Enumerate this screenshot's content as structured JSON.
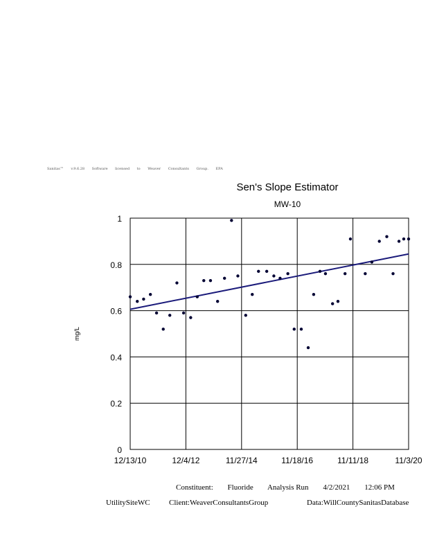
{
  "license_text": "Sanitas™ v.9.6.28 Software licensed to Weaver Consultants Group. EPA",
  "chart_data": {
    "type": "scatter",
    "title": "Sen's Slope Estimator",
    "subtitle": "MW-10",
    "ylabel": "mg/L",
    "xlabel": "",
    "ylim": [
      0,
      1
    ],
    "yticks": [
      "0",
      "0.2",
      "0.4",
      "0.6",
      "0.8",
      "1"
    ],
    "xlim": [
      "2010-12-13",
      "2020-11-03"
    ],
    "xticks": [
      "12/13/10",
      "12/4/12",
      "11/27/14",
      "11/18/16",
      "11/11/18",
      "11/3/20"
    ],
    "grid": true,
    "point_color": "#000033",
    "trend_color": "#1a1a7a",
    "points": [
      {
        "x": "2010-12-13",
        "y": 0.66
      },
      {
        "x": "2011-03-15",
        "y": 0.64
      },
      {
        "x": "2011-06-05",
        "y": 0.65
      },
      {
        "x": "2011-09-01",
        "y": 0.67
      },
      {
        "x": "2011-11-20",
        "y": 0.59
      },
      {
        "x": "2012-02-15",
        "y": 0.52
      },
      {
        "x": "2012-05-10",
        "y": 0.58
      },
      {
        "x": "2012-08-10",
        "y": 0.72
      },
      {
        "x": "2012-11-05",
        "y": 0.59
      },
      {
        "x": "2013-02-05",
        "y": 0.57
      },
      {
        "x": "2013-05-01",
        "y": 0.66
      },
      {
        "x": "2013-07-25",
        "y": 0.73
      },
      {
        "x": "2013-10-20",
        "y": 0.73
      },
      {
        "x": "2014-01-20",
        "y": 0.64
      },
      {
        "x": "2014-04-20",
        "y": 0.74
      },
      {
        "x": "2014-07-20",
        "y": 0.99
      },
      {
        "x": "2014-10-10",
        "y": 0.75
      },
      {
        "x": "2015-01-20",
        "y": 0.58
      },
      {
        "x": "2015-04-15",
        "y": 0.67
      },
      {
        "x": "2015-07-05",
        "y": 0.77
      },
      {
        "x": "2015-10-20",
        "y": 0.77
      },
      {
        "x": "2016-01-20",
        "y": 0.75
      },
      {
        "x": "2016-04-10",
        "y": 0.74
      },
      {
        "x": "2016-07-20",
        "y": 0.76
      },
      {
        "x": "2016-10-10",
        "y": 0.52
      },
      {
        "x": "2017-01-10",
        "y": 0.52
      },
      {
        "x": "2017-04-10",
        "y": 0.44
      },
      {
        "x": "2017-06-20",
        "y": 0.67
      },
      {
        "x": "2017-09-10",
        "y": 0.77
      },
      {
        "x": "2017-11-20",
        "y": 0.76
      },
      {
        "x": "2018-02-20",
        "y": 0.63
      },
      {
        "x": "2018-05-01",
        "y": 0.64
      },
      {
        "x": "2018-08-01",
        "y": 0.76
      },
      {
        "x": "2018-10-10",
        "y": 0.91
      },
      {
        "x": "2019-04-20",
        "y": 0.76
      },
      {
        "x": "2019-07-15",
        "y": 0.81
      },
      {
        "x": "2019-10-20",
        "y": 0.9
      },
      {
        "x": "2020-01-25",
        "y": 0.92
      },
      {
        "x": "2020-04-15",
        "y": 0.76
      },
      {
        "x": "2020-07-01",
        "y": 0.9
      },
      {
        "x": "2020-09-01",
        "y": 0.91
      },
      {
        "x": "2020-11-03",
        "y": 0.91
      }
    ],
    "trend_line": [
      {
        "x": "2010-12-13",
        "y": 0.606
      },
      {
        "x": "2020-11-03",
        "y": 0.845
      }
    ]
  },
  "footer": {
    "constituent_label": "Constituent:",
    "constituent_value": "Fluoride",
    "analysis_run_label": "Analysis Run",
    "analysis_run_date": "4/2/2021",
    "analysis_run_time": "12:06 PM",
    "site": "UtilitySiteWC",
    "client": "Client:WeaverConsultantsGroup",
    "data_source": "Data:WillCountySanitasDatabase"
  }
}
